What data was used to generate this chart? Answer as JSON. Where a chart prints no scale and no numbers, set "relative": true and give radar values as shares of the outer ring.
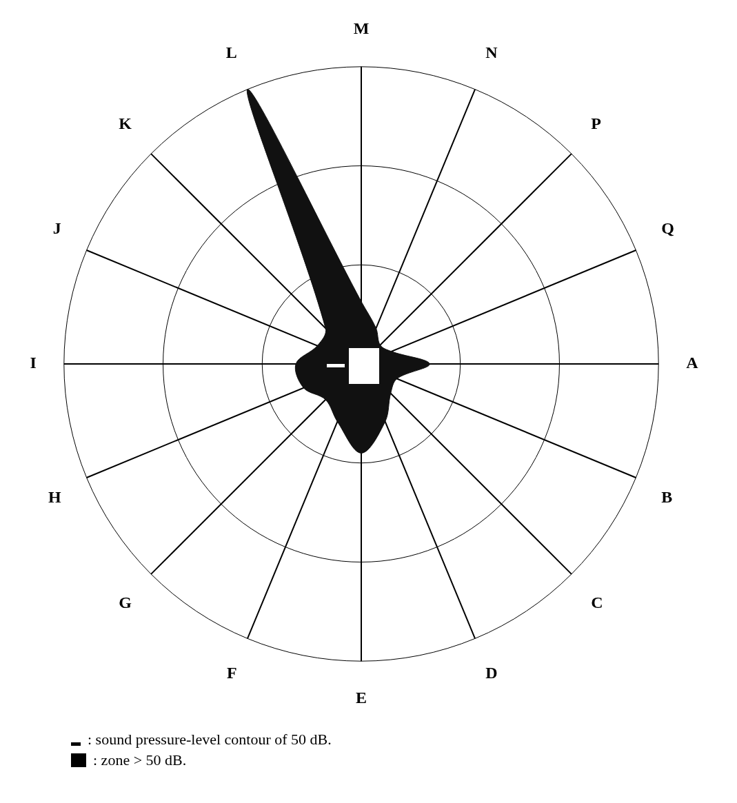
{
  "chart_data": {
    "type": "radar",
    "relative": true,
    "grid": true,
    "marker": "none",
    "categories": [
      "M",
      "N",
      "P",
      "Q",
      "A",
      "B",
      "C",
      "D",
      "E",
      "F",
      "G",
      "H",
      "I",
      "J",
      "K",
      "L"
    ],
    "series": [
      {
        "color": "#111111",
        "values": [
          0.21,
          0.13,
          0.09,
          0.11,
          0.23,
          0.13,
          0.14,
          0.21,
          0.3,
          0.21,
          0.17,
          0.21,
          0.22,
          0.16,
          0.17,
          1
        ]
      }
    ],
    "annotations": [
      ": sound pressure-level contour of 50 dB.",
      ": zone > 50 dB."
    ]
  }
}
